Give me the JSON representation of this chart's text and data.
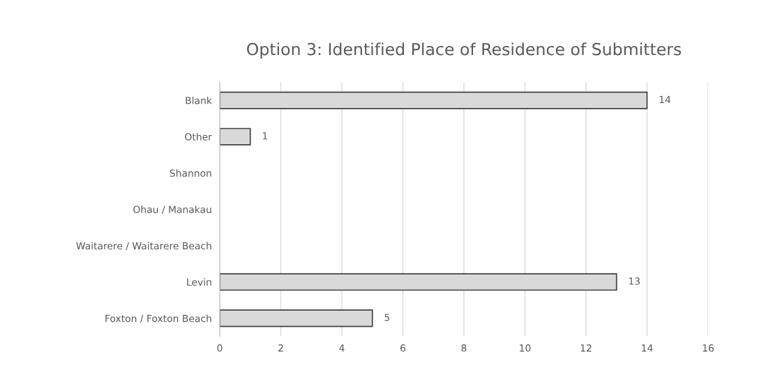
{
  "chart_data": {
    "type": "bar",
    "orientation": "horizontal",
    "title": "Option 3: Identified Place of Residence of Submitters",
    "categories": [
      "Blank",
      "Other",
      "Shannon",
      "Ohau / Manakau",
      "Waitarere / Waitarere Beach",
      "Levin",
      "Foxton / Foxton Beach"
    ],
    "values": [
      14,
      1,
      null,
      null,
      null,
      13,
      5
    ],
    "color": "#d9d9d9",
    "xlim": [
      0,
      16
    ],
    "xticks": [
      0,
      2,
      4,
      6,
      8,
      10,
      12,
      14,
      16
    ],
    "grid": "x",
    "data_labels": true
  }
}
